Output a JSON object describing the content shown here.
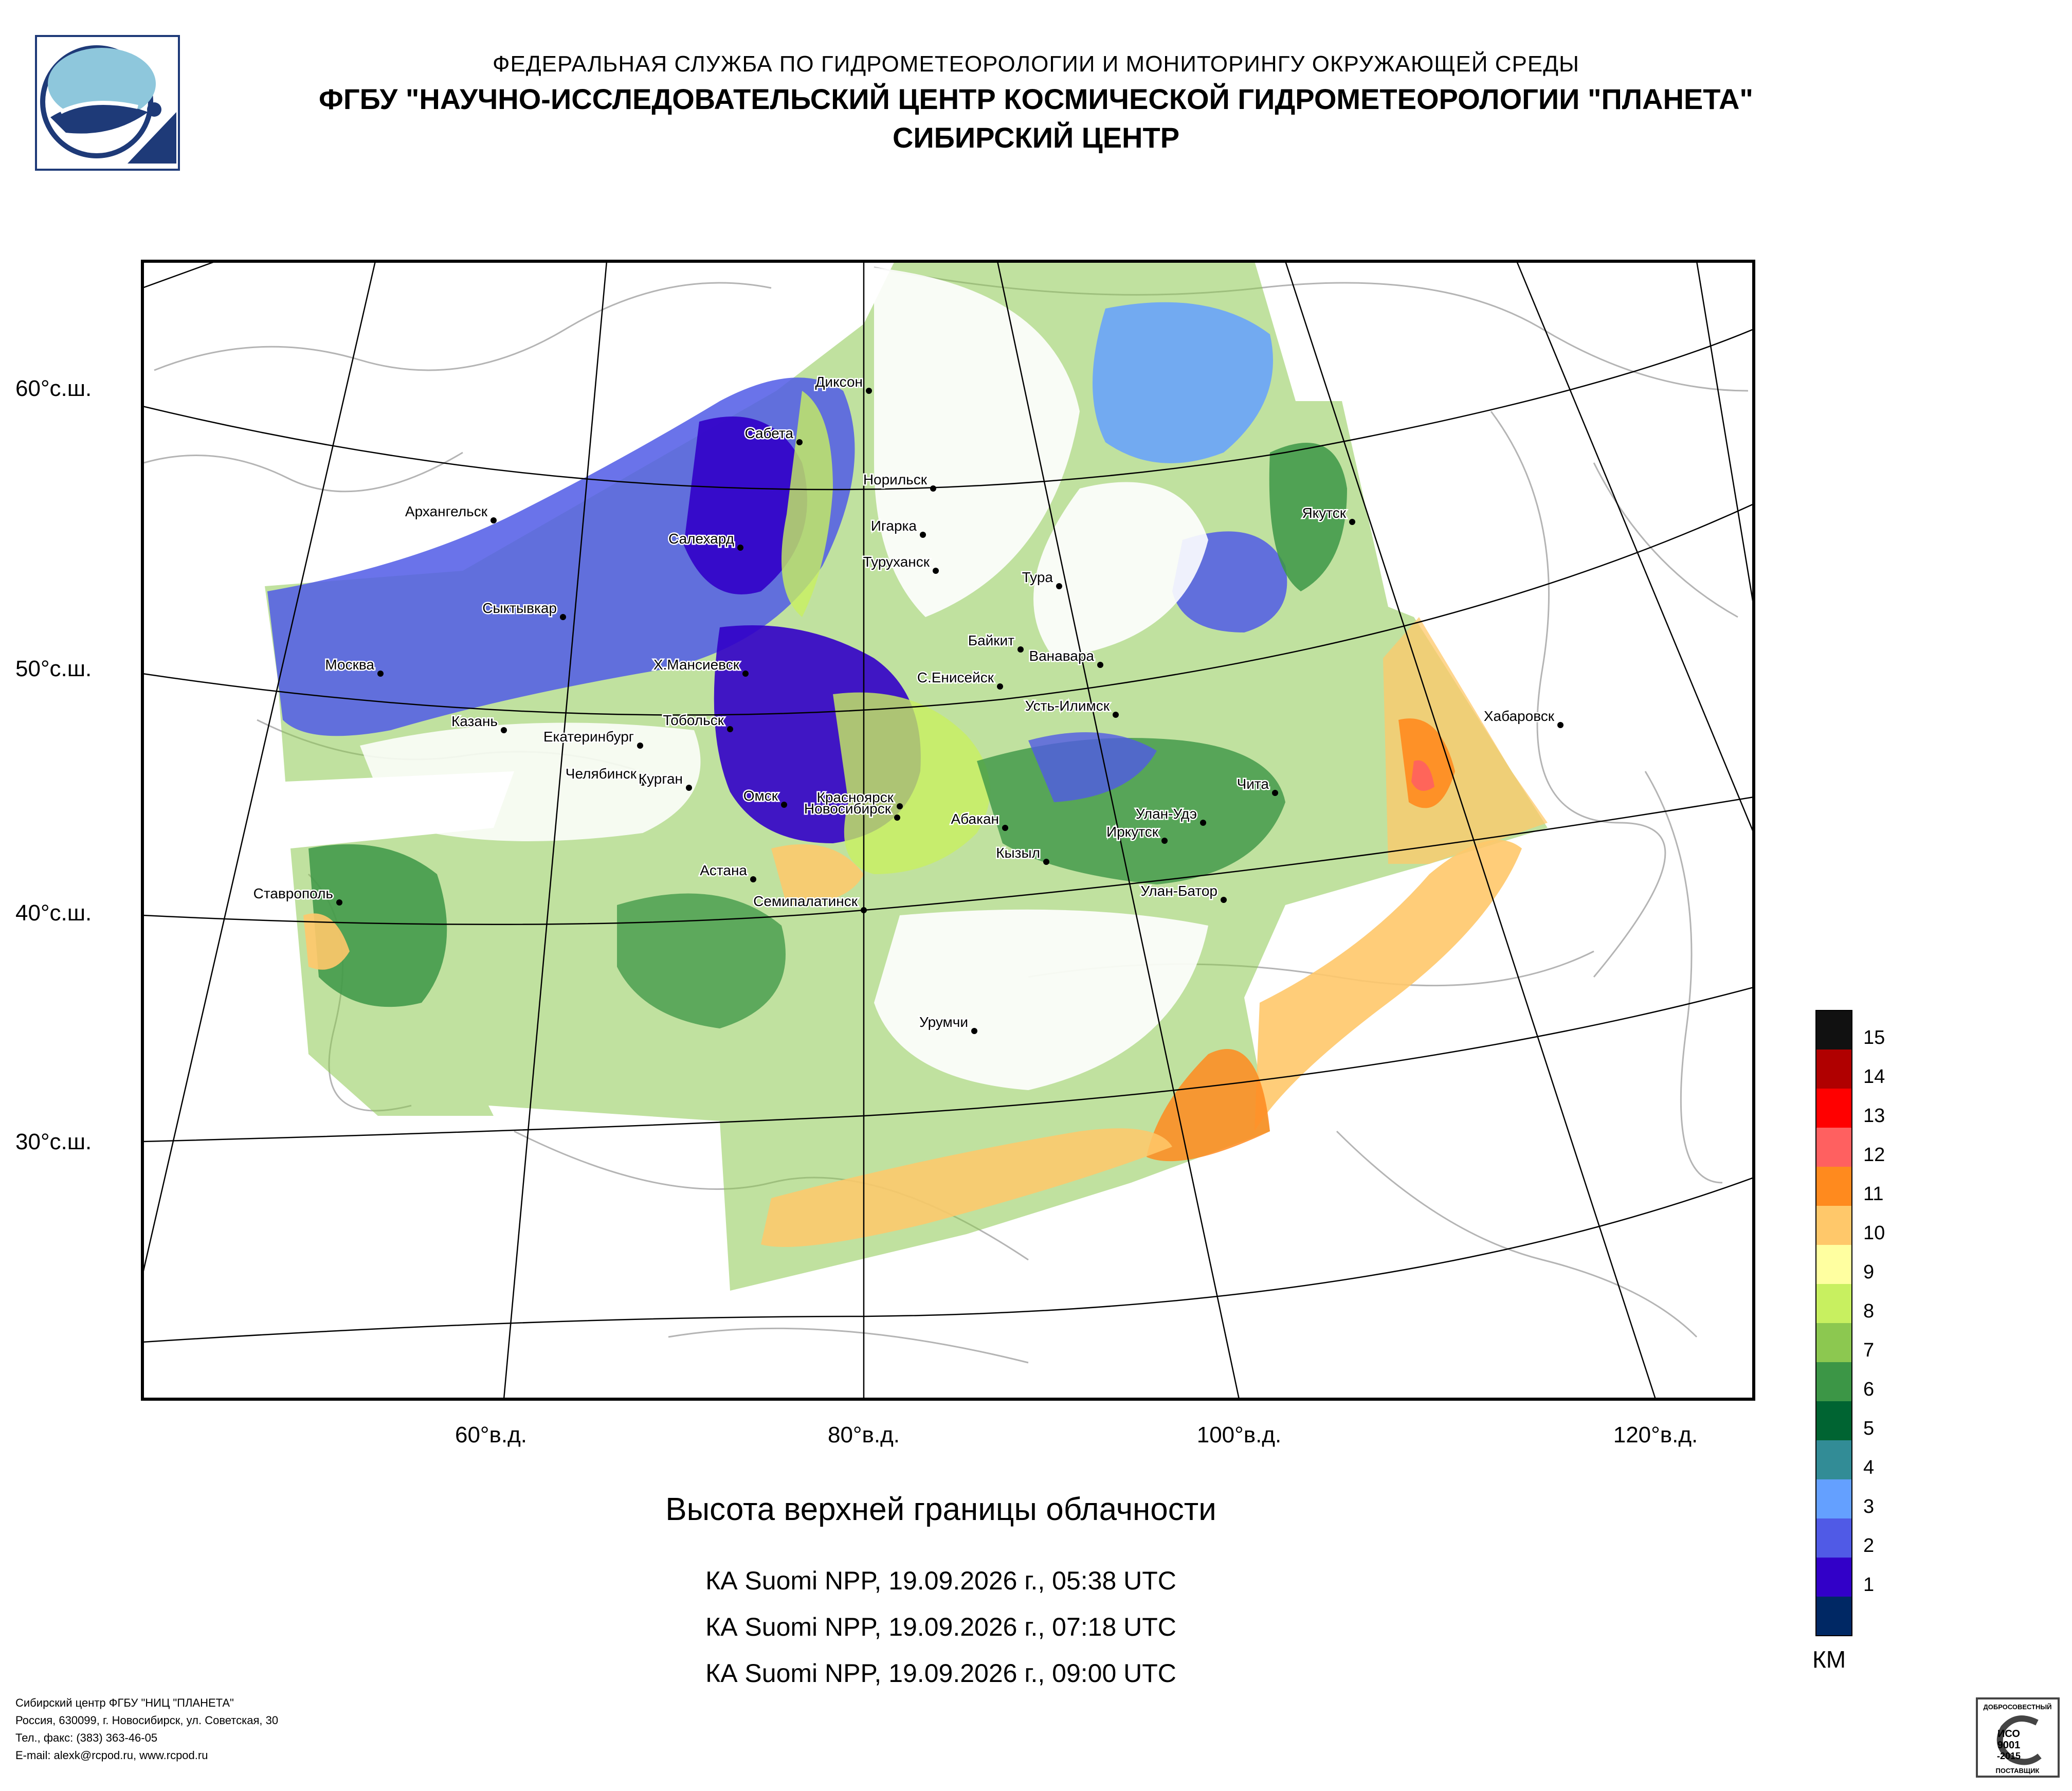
{
  "header": {
    "agency": "ФЕДЕРАЛЬНАЯ СЛУЖБА ПО ГИДРОМЕТЕОРОЛОГИИ И МОНИТОРИНГУ ОКРУЖАЮЩЕЙ СРЕДЫ",
    "institute": "ФГБУ \"НАУЧНО-ИССЛЕДОВАТЕЛЬСКИЙ ЦЕНТР КОСМИЧЕСКОЙ ГИДРОМЕТЕОРОЛОГИИ \"ПЛАНЕТА\"",
    "center": "СИБИРСКИЙ ЦЕНТР"
  },
  "map": {
    "lat_labels": [
      "60°с.ш.",
      "50°с.ш.",
      "40°с.ш.",
      "30°с.ш."
    ],
    "lon_labels": [
      "60°в.д.",
      "80°в.д.",
      "100°в.д.",
      "120°в.д."
    ],
    "cities": [
      "Диксон",
      "Сабета",
      "Норильск",
      "Игарка",
      "Туруханск",
      "Тура",
      "Архангельск",
      "Салехард",
      "Сыктывкар",
      "Якутск",
      "Байкит",
      "Ванавара",
      "Москва",
      "Х.Мансиевск",
      "С.Енисейск",
      "Усть-Илимск",
      "Хабаровск",
      "Казань",
      "Тобольск",
      "Екатеринбург",
      "Челябинск",
      "Курган",
      "Красноярск",
      "Омск",
      "Новосибирск",
      "Абакан",
      "Иркутск",
      "Улан-Удэ",
      "Чита",
      "Кызыл",
      "Ставрополь",
      "Астана",
      "Семипалатинск",
      "Улан-Батор",
      "Урумчи"
    ]
  },
  "caption": "Высота верхней границы облачности",
  "passes": [
    "КА Suomi NPP, 19.09.2026 г., 05:38 UTC",
    "КА Suomi NPP, 19.09.2026 г., 07:18 UTC",
    "КА Suomi NPP, 19.09.2026 г., 09:00 UTC"
  ],
  "legend": {
    "unit": "КМ",
    "levels": [
      {
        "label": "15",
        "color": "#111111"
      },
      {
        "label": "14",
        "color": "#b00000"
      },
      {
        "label": "13",
        "color": "#ff0000"
      },
      {
        "label": "12",
        "color": "#ff6060"
      },
      {
        "label": "11",
        "color": "#ff8a1e"
      },
      {
        "label": "10",
        "color": "#ffc86a"
      },
      {
        "label": "9",
        "color": "#ffffa0"
      },
      {
        "label": "8",
        "color": "#c8f060"
      },
      {
        "label": "7",
        "color": "#8cc850"
      },
      {
        "label": "6",
        "color": "#3c9646"
      },
      {
        "label": "5",
        "color": "#006432"
      },
      {
        "label": "4",
        "color": "#328c96"
      },
      {
        "label": "3",
        "color": "#64a0ff"
      },
      {
        "label": "2",
        "color": "#505ae6"
      },
      {
        "label": "1",
        "color": "#3200c8"
      },
      {
        "label": "",
        "color": "#002864"
      }
    ]
  },
  "footer": {
    "line1": "Сибирский центр ФГБУ \"НИЦ \"ПЛАНЕТА\"",
    "line2": "Россия, 630099, г. Новосибирск, ул. Советская, 30",
    "line3": "Тел., факс: (383) 363-46-05",
    "line4": "E-mail: alexk@rcpod.ru, www.rcpod.ru"
  },
  "stamp": {
    "top": "ДОБРОСОВЕСТНЫЙ",
    "mid1": "ИСО",
    "mid2": "9001",
    "mid3": "-2015",
    "bottom": "ПОСТАВЩИК"
  }
}
